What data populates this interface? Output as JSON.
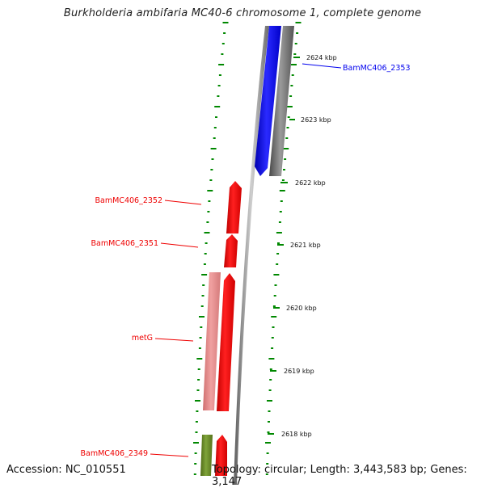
{
  "title": "Burkholderia ambifaria MC40-6 chromosome 1, complete genome",
  "footer": {
    "accession": "Accession: NC_010551",
    "summary": "Topology: circular; Length: 3,443,583 bp; Genes: 3,147"
  },
  "ticks": [
    {
      "label": "2624 kbp"
    },
    {
      "label": "2623 kbp"
    },
    {
      "label": "2622 kbp"
    },
    {
      "label": "2621 kbp"
    },
    {
      "label": "2620 kbp"
    },
    {
      "label": "2619 kbp"
    },
    {
      "label": "2618 kbp"
    }
  ],
  "genes": [
    {
      "name": "BamMC406_2353",
      "strand": "+",
      "color": "#0000ee"
    },
    {
      "name": "BamMC406_2352",
      "strand": "-",
      "color": "#ee0000"
    },
    {
      "name": "BamMC406_2351",
      "strand": "-",
      "color": "#ee0000"
    },
    {
      "name": "metG",
      "strand": "-",
      "color": "#ee0000"
    },
    {
      "name": "BamMC406_2349",
      "strand": "-",
      "color": "#ee0000"
    }
  ],
  "colors": {
    "plus_strand_gene": "#0000ee",
    "minus_strand_gene": "#ee0000",
    "rna_feature": "#e88a8a",
    "other_feature": "#6b8e23",
    "tick_marks": "#008800",
    "backbone": "#888888"
  }
}
